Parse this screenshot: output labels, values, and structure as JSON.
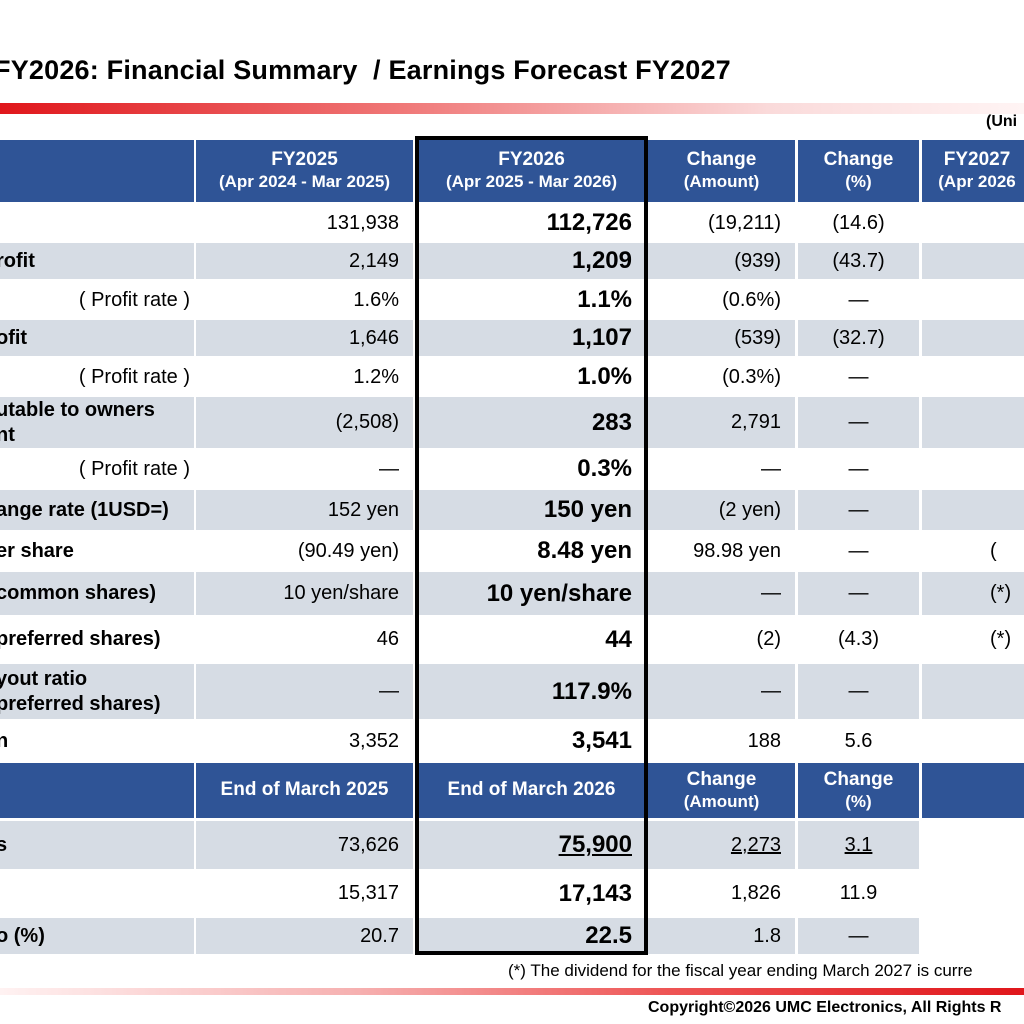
{
  "title": "FY2026: Financial Summary  / Earnings Forecast FY2027",
  "unit_note": "(Uni",
  "headers": {
    "fy2025": {
      "line1": "FY2025",
      "line2": "(Apr 2024 - Mar 2025)"
    },
    "fy2026": {
      "line1": "FY2026",
      "line2": "(Apr 2025 - Mar 2026)"
    },
    "change_amount": {
      "line1": "Change",
      "line2": "(Amount)"
    },
    "change_pct": {
      "line1": "Change",
      "line2": "(%)"
    },
    "fy2027": {
      "line1": "FY2027",
      "line2": "(Apr 2026"
    }
  },
  "rows": [
    {
      "label": "",
      "sub": false,
      "fy2025": "131,938",
      "fy2026": "112,726",
      "chg_amt": "(19,211)",
      "chg_pct": "(14.6)",
      "fy2027": ""
    },
    {
      "label": "rofit",
      "sub": false,
      "fy2025": "2,149",
      "fy2026": "1,209",
      "chg_amt": "(939)",
      "chg_pct": "(43.7)",
      "fy2027": ""
    },
    {
      "label": "( Profit rate )",
      "sub": true,
      "fy2025": "1.6%",
      "fy2026": "1.1%",
      "chg_amt": "(0.6%)",
      "chg_pct": "―",
      "fy2027": ""
    },
    {
      "label": "ofit",
      "sub": false,
      "fy2025": "1,646",
      "fy2026": "1,107",
      "chg_amt": "(539)",
      "chg_pct": "(32.7)",
      "fy2027": ""
    },
    {
      "label": "( Profit rate )",
      "sub": true,
      "fy2025": "1.2%",
      "fy2026": "1.0%",
      "chg_amt": "(0.3%)",
      "chg_pct": "―",
      "fy2027": ""
    },
    {
      "label": "utable to owners\nnt",
      "sub": false,
      "fy2025": "(2,508)",
      "fy2026": "283",
      "chg_amt": "2,791",
      "chg_pct": "―",
      "fy2027": ""
    },
    {
      "label": "( Profit rate )",
      "sub": true,
      "fy2025": "―",
      "fy2026": "0.3%",
      "chg_amt": "―",
      "chg_pct": "―",
      "fy2027": ""
    },
    {
      "label": "ange rate (1USD=)",
      "sub": false,
      "fy2025": "152 yen",
      "fy2026": "150 yen",
      "chg_amt": "(2 yen)",
      "chg_pct": "―",
      "fy2027": ""
    },
    {
      "label": "er share",
      "sub": false,
      "fy2025": "(90.49 yen)",
      "fy2026": "8.48 yen",
      "chg_amt": "98.98 yen",
      "chg_pct": "―",
      "fy2027": "("
    },
    {
      "label": "common shares)",
      "sub": false,
      "fy2025": "10 yen/share",
      "fy2026": "10 yen/share",
      "chg_amt": "―",
      "chg_pct": "―",
      "fy2027": "(*)"
    },
    {
      "label": "preferred shares)",
      "sub": false,
      "fy2025": "46",
      "fy2026": "44",
      "chg_amt": "(2)",
      "chg_pct": "(4.3)",
      "fy2027": "(*)"
    },
    {
      "label": "yout ratio\npreferred shares)",
      "sub": false,
      "fy2025": "―",
      "fy2026": "117.9%",
      "chg_amt": "―",
      "chg_pct": "―",
      "fy2027": ""
    },
    {
      "label": "n",
      "sub": false,
      "fy2025": "3,352",
      "fy2026": "3,541",
      "chg_amt": "188",
      "chg_pct": "5.6",
      "fy2027": ""
    }
  ],
  "headers2": {
    "col1": "End of March 2025",
    "col2": "End of March 2026",
    "change_amount": {
      "line1": "Change",
      "line2": "(Amount)"
    },
    "change_pct": {
      "line1": "Change",
      "line2": "(%)"
    }
  },
  "rows2": [
    {
      "label": "s",
      "v2025": "73,626",
      "v2026": "75,900",
      "chg_amt": "2,273",
      "chg_pct": "3.1"
    },
    {
      "label": "",
      "v2025": "15,317",
      "v2026": "17,143",
      "chg_amt": "1,826",
      "chg_pct": "11.9"
    },
    {
      "label": "o (%)",
      "v2025": "20.7",
      "v2026": "22.5",
      "chg_amt": "1.8",
      "chg_pct": "―"
    }
  ],
  "footnote": "(*) The dividend for the fiscal year ending March 2027 is curre",
  "copyright": "Copyright©2026 UMC Electronics, All Rights R",
  "colors": {
    "header_bg": "#2f5496",
    "band_bg": "#d6dce4",
    "accent_red": "#e0161b"
  }
}
